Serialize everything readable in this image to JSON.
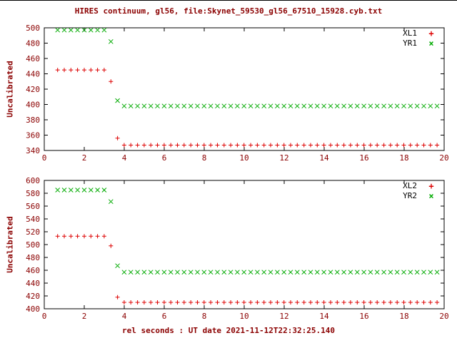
{
  "title": "HIRES continuum, gl56, file:Skynet_59530_gl56_67510_15928.cyb.txt",
  "xlabel": "rel seconds : UT date 2021-11-12T22:32:25.140",
  "text_color": "#8b0000",
  "chart_data": [
    {
      "type": "scatter",
      "panel": "top",
      "ylabel": "Uncalibrated",
      "ylim": [
        340,
        500
      ],
      "y_ticks": [
        340,
        360,
        380,
        400,
        420,
        440,
        460,
        480,
        500
      ],
      "xlim": [
        0,
        20
      ],
      "x_ticks": [
        0,
        2,
        4,
        6,
        8,
        10,
        12,
        14,
        16,
        18,
        20
      ],
      "x_start": 0.667,
      "x_step": 0.333,
      "grid": "off",
      "legend_position": "top-right",
      "series": [
        {
          "name": "XL1",
          "marker": "plus",
          "color": "#dd0000",
          "value_runs": [
            [
              445,
              8
            ],
            [
              430,
              1
            ],
            [
              356,
              1
            ],
            [
              347,
              48
            ]
          ]
        },
        {
          "name": "YR1",
          "marker": "cross",
          "color": "#00aa00",
          "value_runs": [
            [
              497,
              8
            ],
            [
              482,
              1
            ],
            [
              405,
              1
            ],
            [
              398,
              48
            ]
          ]
        }
      ]
    },
    {
      "type": "scatter",
      "panel": "bottom",
      "ylabel": "Uncalibrated",
      "ylim": [
        400,
        600
      ],
      "y_ticks": [
        400,
        420,
        440,
        460,
        480,
        500,
        520,
        540,
        560,
        580,
        600
      ],
      "xlim": [
        0,
        20
      ],
      "x_ticks": [
        0,
        2,
        4,
        6,
        8,
        10,
        12,
        14,
        16,
        18,
        20
      ],
      "x_start": 0.667,
      "x_step": 0.333,
      "grid": "off",
      "legend_position": "top-right",
      "series": [
        {
          "name": "XL2",
          "marker": "plus",
          "color": "#dd0000",
          "value_runs": [
            [
              513,
              8
            ],
            [
              498,
              1
            ],
            [
              418,
              1
            ],
            [
              410,
              48
            ]
          ]
        },
        {
          "name": "YR2",
          "marker": "cross",
          "color": "#00aa00",
          "value_runs": [
            [
              585,
              8
            ],
            [
              567,
              1
            ],
            [
              467,
              1
            ],
            [
              457,
              48
            ]
          ]
        }
      ]
    }
  ]
}
